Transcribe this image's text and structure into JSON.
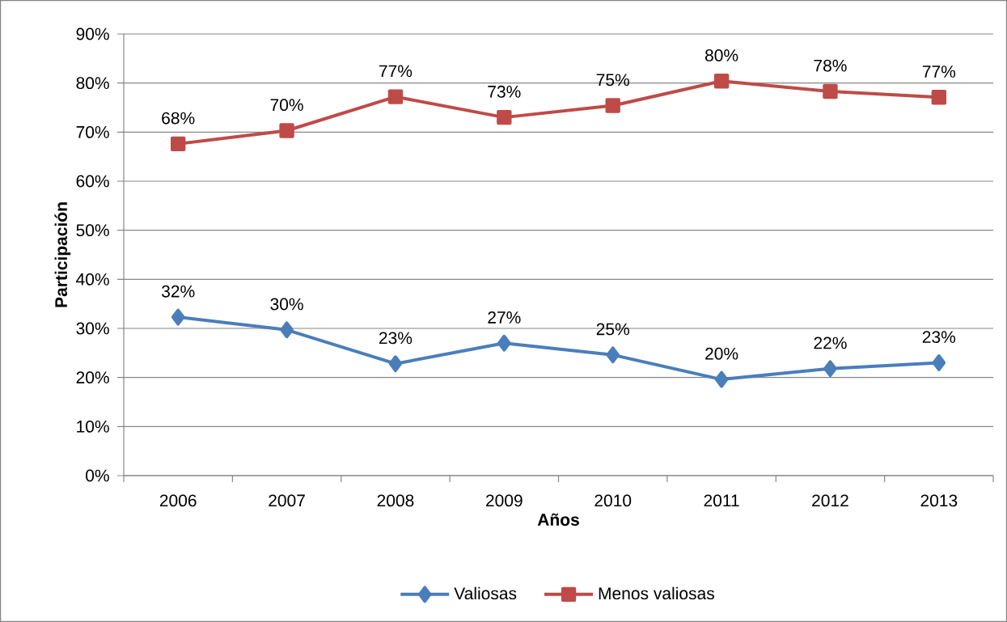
{
  "chart_data": {
    "type": "line",
    "xlabel": "Años",
    "ylabel": "Participación",
    "categories": [
      "2006",
      "2007",
      "2008",
      "2009",
      "2010",
      "2011",
      "2012",
      "2013"
    ],
    "series": [
      {
        "name": "Valiosas",
        "color": "#4a7ebb",
        "marker": "diamond",
        "values": [
          32.3,
          29.7,
          22.8,
          27,
          24.6,
          19.6,
          21.8,
          23
        ],
        "value_labels": [
          "32%",
          "30%",
          "23%",
          "27%",
          "25%",
          "20%",
          "22%",
          "23%"
        ]
      },
      {
        "name": "Menos valiosas",
        "color": "#be4b48",
        "marker": "square",
        "values": [
          67.6,
          70.3,
          77.2,
          73,
          75.4,
          80.4,
          78.3,
          77.1
        ],
        "value_labels": [
          "68%",
          "70%",
          "77%",
          "73%",
          "75%",
          "80%",
          "78%",
          "77%"
        ]
      }
    ],
    "ylim": [
      0,
      90
    ],
    "yticks": [
      {
        "value": 0,
        "label": "0%"
      },
      {
        "value": 10,
        "label": "10%"
      },
      {
        "value": 20,
        "label": "20%"
      },
      {
        "value": 30,
        "label": "30%"
      },
      {
        "value": 40,
        "label": "40%"
      },
      {
        "value": 50,
        "label": "50%"
      },
      {
        "value": 60,
        "label": "60%"
      },
      {
        "value": 70,
        "label": "70%"
      },
      {
        "value": 80,
        "label": "80%"
      },
      {
        "value": 90,
        "label": "90%"
      }
    ],
    "grid": "y",
    "legend": "bottom"
  }
}
